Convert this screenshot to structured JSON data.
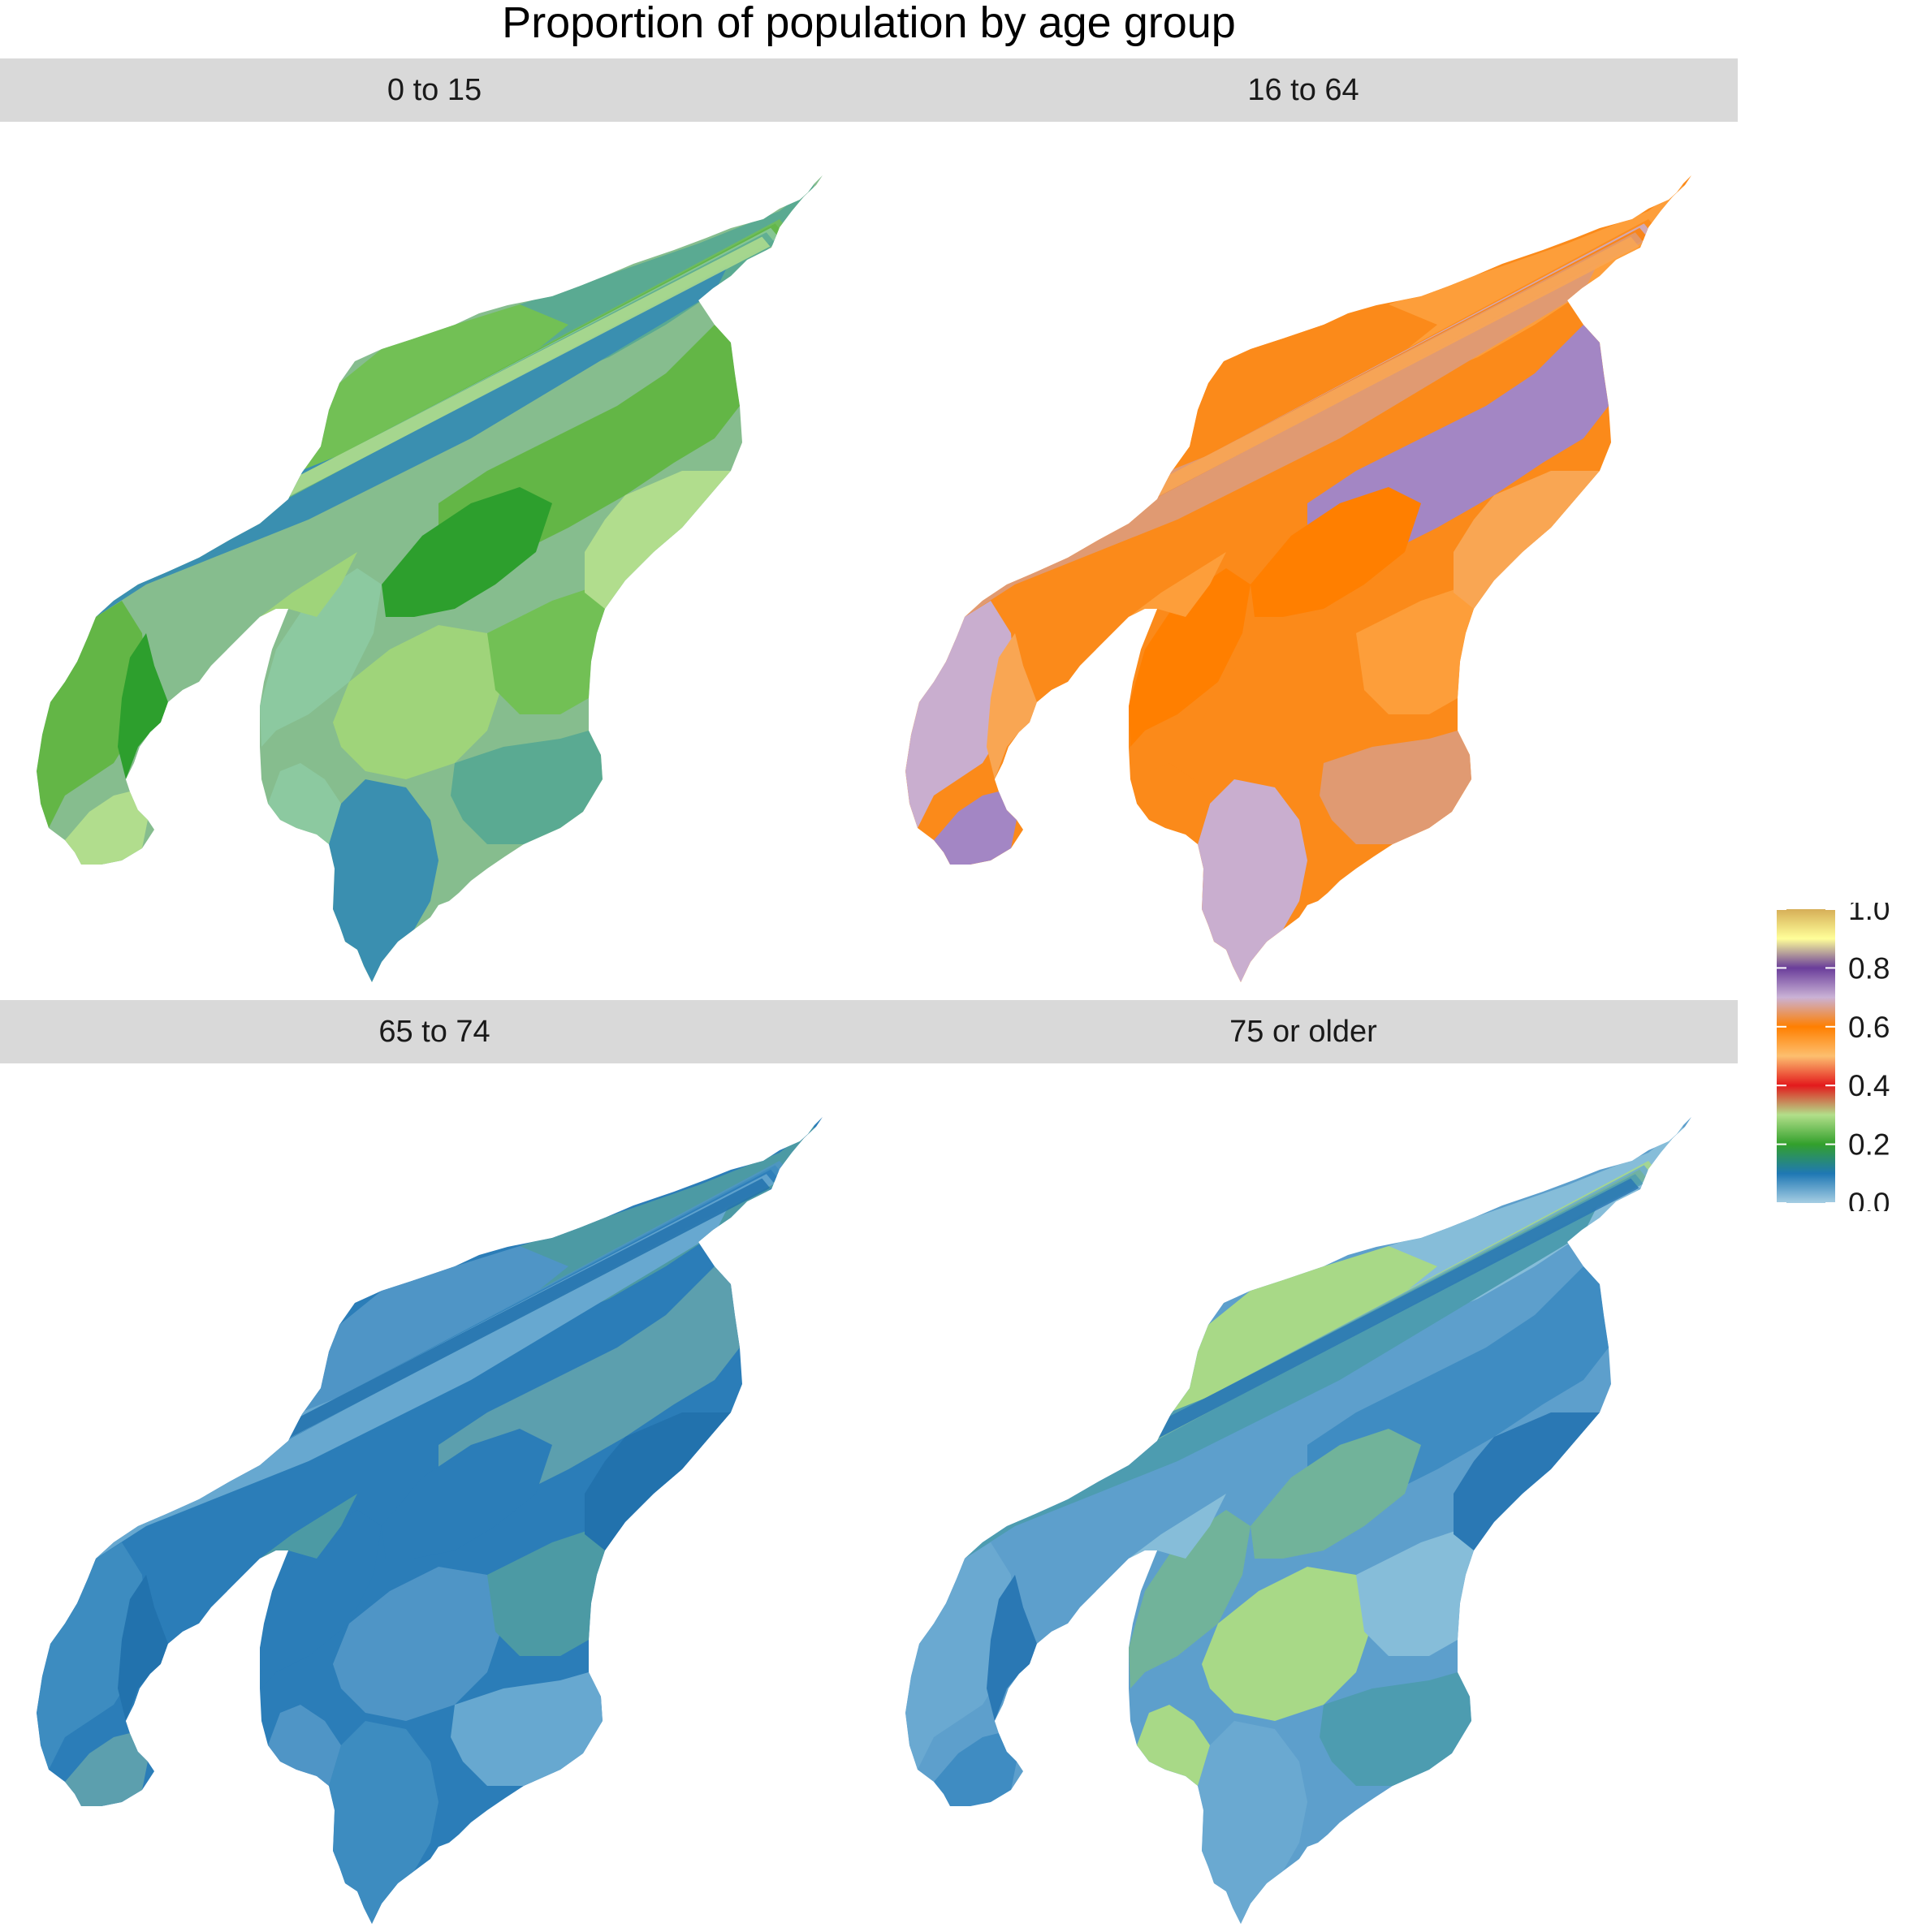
{
  "title": "Proportion of population by age group",
  "facets": [
    {
      "label": "0 to 15"
    },
    {
      "label": "16 to 64"
    },
    {
      "label": "65 to 74"
    },
    {
      "label": "75 or older"
    }
  ],
  "legend": {
    "ticks": [
      {
        "value": 1.0,
        "label": "1.0"
      },
      {
        "value": 0.8,
        "label": "0.8"
      },
      {
        "value": 0.6,
        "label": "0.6"
      },
      {
        "value": 0.4,
        "label": "0.4"
      },
      {
        "value": 0.2,
        "label": "0.2"
      },
      {
        "value": 0.0,
        "label": "0.0"
      }
    ],
    "range": [
      0,
      1
    ],
    "colors": [
      {
        "stop": 0.0,
        "color": "#a6cee3"
      },
      {
        "stop": 0.1,
        "color": "#1f78b4"
      },
      {
        "stop": 0.2,
        "color": "#33a02c"
      },
      {
        "stop": 0.3,
        "color": "#b2df8a"
      },
      {
        "stop": 0.4,
        "color": "#e31a1c"
      },
      {
        "stop": 0.5,
        "color": "#fdbf6f"
      },
      {
        "stop": 0.6,
        "color": "#ff7f00"
      },
      {
        "stop": 0.7,
        "color": "#cab2d6"
      },
      {
        "stop": 0.8,
        "color": "#6a3d9a"
      },
      {
        "stop": 0.9,
        "color": "#ffff99"
      },
      {
        "stop": 1.0,
        "color": "#d6ae57"
      }
    ]
  },
  "panel_palettes": {
    "0 to 15": {
      "base": "#86bd8e",
      "fills": [
        "#9fd47a",
        "#72c055",
        "#5aaa92",
        "#3a8fb0",
        "#63b646",
        "#b1dd8d",
        "#2d9f2d",
        "#8cc9a0"
      ]
    },
    "16 to 64": {
      "base": "#fb8a1a",
      "fills": [
        "#fb8a1a",
        "#fd9e3a",
        "#e09a72",
        "#c9aecf",
        "#a386c4",
        "#f9a653",
        "#ff7f00"
      ]
    },
    "65 to 74": {
      "base": "#2b7db8",
      "fills": [
        "#2b7db8",
        "#4f95c6",
        "#4c9aa4",
        "#67a8d0",
        "#3d8cc0",
        "#5c9fae",
        "#2272ad"
      ]
    },
    "75 or older": {
      "base": "#5d9fcc",
      "fills": [
        "#6aa9d1",
        "#3f8cc2",
        "#2a78b4",
        "#71b39a",
        "#a8d987",
        "#86bdd9",
        "#4d9cb0"
      ]
    }
  }
}
